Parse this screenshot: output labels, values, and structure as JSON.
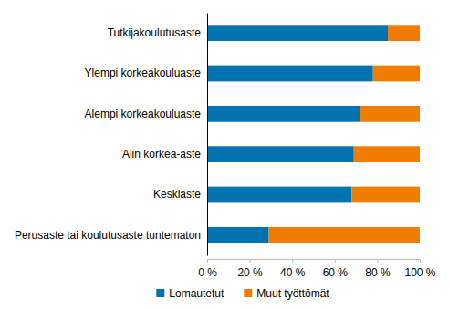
{
  "chart_data": {
    "type": "bar",
    "orientation": "horizontal",
    "stacked": true,
    "categories": [
      "Tutkijakoulutusaste",
      "Ylempi korkeakouluaste",
      "Alempi korkeakouluaste",
      "Alin korkea-aste",
      "Keskiaste",
      "Perusaste tai koulutusaste tuntematon"
    ],
    "series": [
      {
        "name": "Lomautetut",
        "color": "#0073b0",
        "values": [
          85,
          78,
          72,
          69,
          68,
          29
        ]
      },
      {
        "name": "Muut työttömät",
        "color": "#f07c00",
        "values": [
          15,
          22,
          28,
          31,
          32,
          71
        ]
      }
    ],
    "xlim": [
      0,
      100
    ],
    "xticks": [
      {
        "value": 0,
        "label": "0 %"
      },
      {
        "value": 20,
        "label": "20 %"
      },
      {
        "value": 40,
        "label": "40 %"
      },
      {
        "value": 60,
        "label": "60 %"
      },
      {
        "value": 80,
        "label": "80 %"
      },
      {
        "value": 100,
        "label": "100 %"
      }
    ],
    "grid": false,
    "legend": "bottom"
  }
}
